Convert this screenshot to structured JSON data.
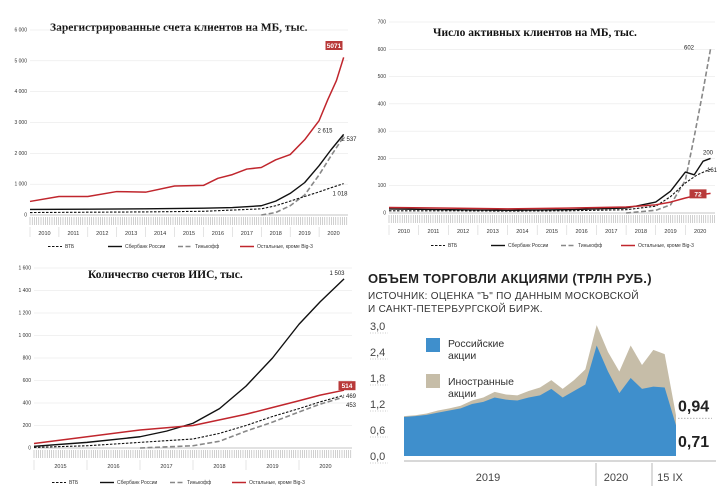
{
  "colors": {
    "vtb": "#111111",
    "sber": "#111111",
    "tinkoff": "#888888",
    "others": "#c0262d",
    "badge": "#b83a3a",
    "ru_area": "#3f8fcc",
    "foreign_area": "#c6bda8"
  },
  "chart_data": [
    {
      "type": "line",
      "title": "Зарегистрированные счета клиентов на МБ, тыс.",
      "ylim": [
        0,
        6000
      ],
      "yticks": [
        "0",
        "1 000",
        "2 000",
        "3 000",
        "4 000",
        "5 000",
        "6 000"
      ],
      "xlim": [
        2010,
        2021
      ],
      "years": [
        "2010",
        "2011",
        "2012",
        "2013",
        "2014",
        "2015",
        "2016",
        "2017",
        "2018",
        "2019",
        "2020"
      ],
      "labels": {
        "others": "5071",
        "sber": "2 615",
        "tinkoff": "2 537",
        "vtb": "1 018"
      },
      "legend": [
        "ВТБ",
        "Сбербанк России",
        "Тинькофф",
        "Остальные, кроме Big-3"
      ],
      "series": [
        {
          "name": "Остальные, кроме Big-3",
          "key": "others",
          "x": [
            2010,
            2011,
            2012,
            2013,
            2014,
            2015,
            2016,
            2016.5,
            2017,
            2017.5,
            2018,
            2018.5,
            2019,
            2019.5,
            2020,
            2020.3,
            2020.6,
            2020.85
          ],
          "values": [
            480,
            560,
            640,
            720,
            780,
            900,
            1000,
            1150,
            1350,
            1450,
            1580,
            1750,
            2000,
            2400,
            3100,
            3700,
            4400,
            5071
          ]
        },
        {
          "name": "Сбербанк России",
          "key": "sber",
          "x": [
            2010,
            2012,
            2014,
            2016,
            2017,
            2018,
            2018.5,
            2019,
            2019.5,
            2020,
            2020.4,
            2020.85
          ],
          "values": [
            180,
            190,
            200,
            220,
            240,
            300,
            450,
            700,
            1050,
            1600,
            2100,
            2615
          ]
        },
        {
          "name": "Тинькофф",
          "key": "tinkoff",
          "x": [
            2018,
            2018.5,
            2019,
            2019.5,
            2020,
            2020.4,
            2020.85
          ],
          "values": [
            0,
            80,
            300,
            650,
            1300,
            1900,
            2537
          ]
        },
        {
          "name": "ВТБ",
          "key": "vtb",
          "x": [
            2010,
            2012,
            2014,
            2016,
            2018,
            2018.5,
            2019,
            2019.5,
            2020,
            2020.4,
            2020.85
          ],
          "values": [
            80,
            90,
            100,
            120,
            200,
            300,
            450,
            600,
            750,
            880,
            1018
          ]
        }
      ]
    },
    {
      "type": "line",
      "title": "Число активных клиентов на МБ, тыс.",
      "ylim": [
        0,
        700
      ],
      "yticks": [
        "0",
        "100",
        "200",
        "300",
        "400",
        "500",
        "600",
        "700"
      ],
      "xlim": [
        2010,
        2021
      ],
      "years": [
        "2010",
        "2011",
        "2012",
        "2013",
        "2014",
        "2015",
        "2016",
        "2017",
        "2018",
        "2019",
        "2020"
      ],
      "labels": {
        "tinkoff": "602",
        "sber": "200",
        "vtb": "161",
        "others": "72"
      },
      "legend": [
        "ВТБ",
        "Сбербанк России",
        "Тинькофф",
        "Остальные, кроме Big-3"
      ],
      "series": [
        {
          "name": "Тинькофф",
          "key": "tinkoff",
          "x": [
            2018,
            2019,
            2019.5,
            2020,
            2020.3,
            2020.6,
            2020.85
          ],
          "values": [
            0,
            10,
            30,
            120,
            280,
            450,
            602
          ]
        },
        {
          "name": "Сбербанк России",
          "key": "sber",
          "x": [
            2010,
            2012,
            2014,
            2016,
            2018,
            2019,
            2019.5,
            2020,
            2020.3,
            2020.6,
            2020.85
          ],
          "values": [
            15,
            12,
            10,
            12,
            18,
            40,
            80,
            150,
            140,
            190,
            200
          ]
        },
        {
          "name": "ВТБ",
          "key": "vtb",
          "x": [
            2010,
            2012,
            2014,
            2016,
            2018,
            2019,
            2019.5,
            2020,
            2020.4,
            2020.85
          ],
          "values": [
            8,
            8,
            7,
            8,
            12,
            25,
            60,
            110,
            140,
            161
          ]
        },
        {
          "name": "Остальные, кроме Big-3",
          "key": "others",
          "x": [
            2010,
            2012,
            2014,
            2016,
            2018,
            2019,
            2019.5,
            2020,
            2020.4,
            2020.85
          ],
          "values": [
            20,
            18,
            15,
            18,
            22,
            30,
            40,
            55,
            65,
            72
          ]
        }
      ]
    },
    {
      "type": "line",
      "title": "Количество счетов ИИС, тыс.",
      "ylim": [
        0,
        1600
      ],
      "yticks": [
        "0",
        "200",
        "400",
        "600",
        "800",
        "1 000",
        "1 200",
        "1 400",
        "1 600"
      ],
      "xlim": [
        2015,
        2021
      ],
      "years": [
        "2015",
        "2016",
        "2017",
        "2018",
        "2019",
        "2020"
      ],
      "labels": {
        "sber": "1 503",
        "others": "514",
        "vtb": "469",
        "tinkoff": "453"
      },
      "legend": [
        "ВТБ",
        "Сбербанк России",
        "Тинькофф",
        "Остальные, кроме Big-3"
      ],
      "series": [
        {
          "name": "Сбербанк России",
          "key": "sber",
          "x": [
            2015,
            2016,
            2017,
            2017.5,
            2018,
            2018.5,
            2019,
            2019.5,
            2020,
            2020.4,
            2020.85
          ],
          "values": [
            15,
            50,
            100,
            150,
            220,
            350,
            550,
            800,
            1100,
            1300,
            1503
          ]
        },
        {
          "name": "Остальные, кроме Big-3",
          "key": "others",
          "x": [
            2015,
            2016,
            2017,
            2018,
            2018.5,
            2019,
            2019.5,
            2020,
            2020.4,
            2020.85
          ],
          "values": [
            40,
            100,
            160,
            200,
            250,
            300,
            360,
            420,
            470,
            514
          ]
        },
        {
          "name": "ВТБ",
          "key": "vtb",
          "x": [
            2015,
            2016,
            2017,
            2018,
            2018.5,
            2019,
            2019.5,
            2020,
            2020.4,
            2020.85
          ],
          "values": [
            5,
            20,
            50,
            80,
            130,
            200,
            280,
            350,
            410,
            469
          ]
        },
        {
          "name": "Тинькофф",
          "key": "tinkoff",
          "x": [
            2017,
            2018,
            2018.5,
            2019,
            2019.5,
            2020,
            2020.4,
            2020.85
          ],
          "values": [
            0,
            20,
            60,
            150,
            230,
            320,
            390,
            453
          ]
        }
      ]
    },
    {
      "type": "area",
      "title": "ОБЪЕМ ТОРГОВЛИ АКЦИЯМИ (ТРЛН РУБ.)",
      "subtitle": [
        "ИСТОЧНИК: ОЦЕНКА \"Ъ\" ПО ДАННЫМ МОСКОВСКОЙ",
        "И САНКТ-ПЕТЕРБУРГСКОЙ БИРЖ."
      ],
      "ylim": [
        0,
        3.0
      ],
      "yticks": [
        "0,0",
        "0,6",
        "1,2",
        "1,8",
        "2,4",
        "3,0"
      ],
      "xlabels": [
        "2019",
        "2020",
        "15 IX"
      ],
      "end_labels": {
        "total": "0,94",
        "russian": "0,71"
      },
      "series": [
        {
          "name": "Российские акции",
          "key": "ru",
          "values": [
            0.9,
            0.92,
            0.95,
            1.0,
            1.05,
            1.1,
            1.2,
            1.25,
            1.35,
            1.3,
            1.28,
            1.35,
            1.4,
            1.55,
            1.35,
            1.5,
            1.65,
            2.55,
            1.95,
            1.45,
            1.8,
            1.55,
            1.6,
            1.58,
            0.71
          ]
        },
        {
          "name": "Иностранные акции",
          "key": "total",
          "values": [
            0.92,
            0.94,
            0.98,
            1.05,
            1.1,
            1.16,
            1.28,
            1.35,
            1.48,
            1.42,
            1.4,
            1.5,
            1.58,
            1.75,
            1.55,
            1.75,
            2.0,
            3.02,
            2.4,
            1.95,
            2.55,
            2.1,
            2.45,
            2.35,
            0.94
          ]
        }
      ]
    }
  ]
}
